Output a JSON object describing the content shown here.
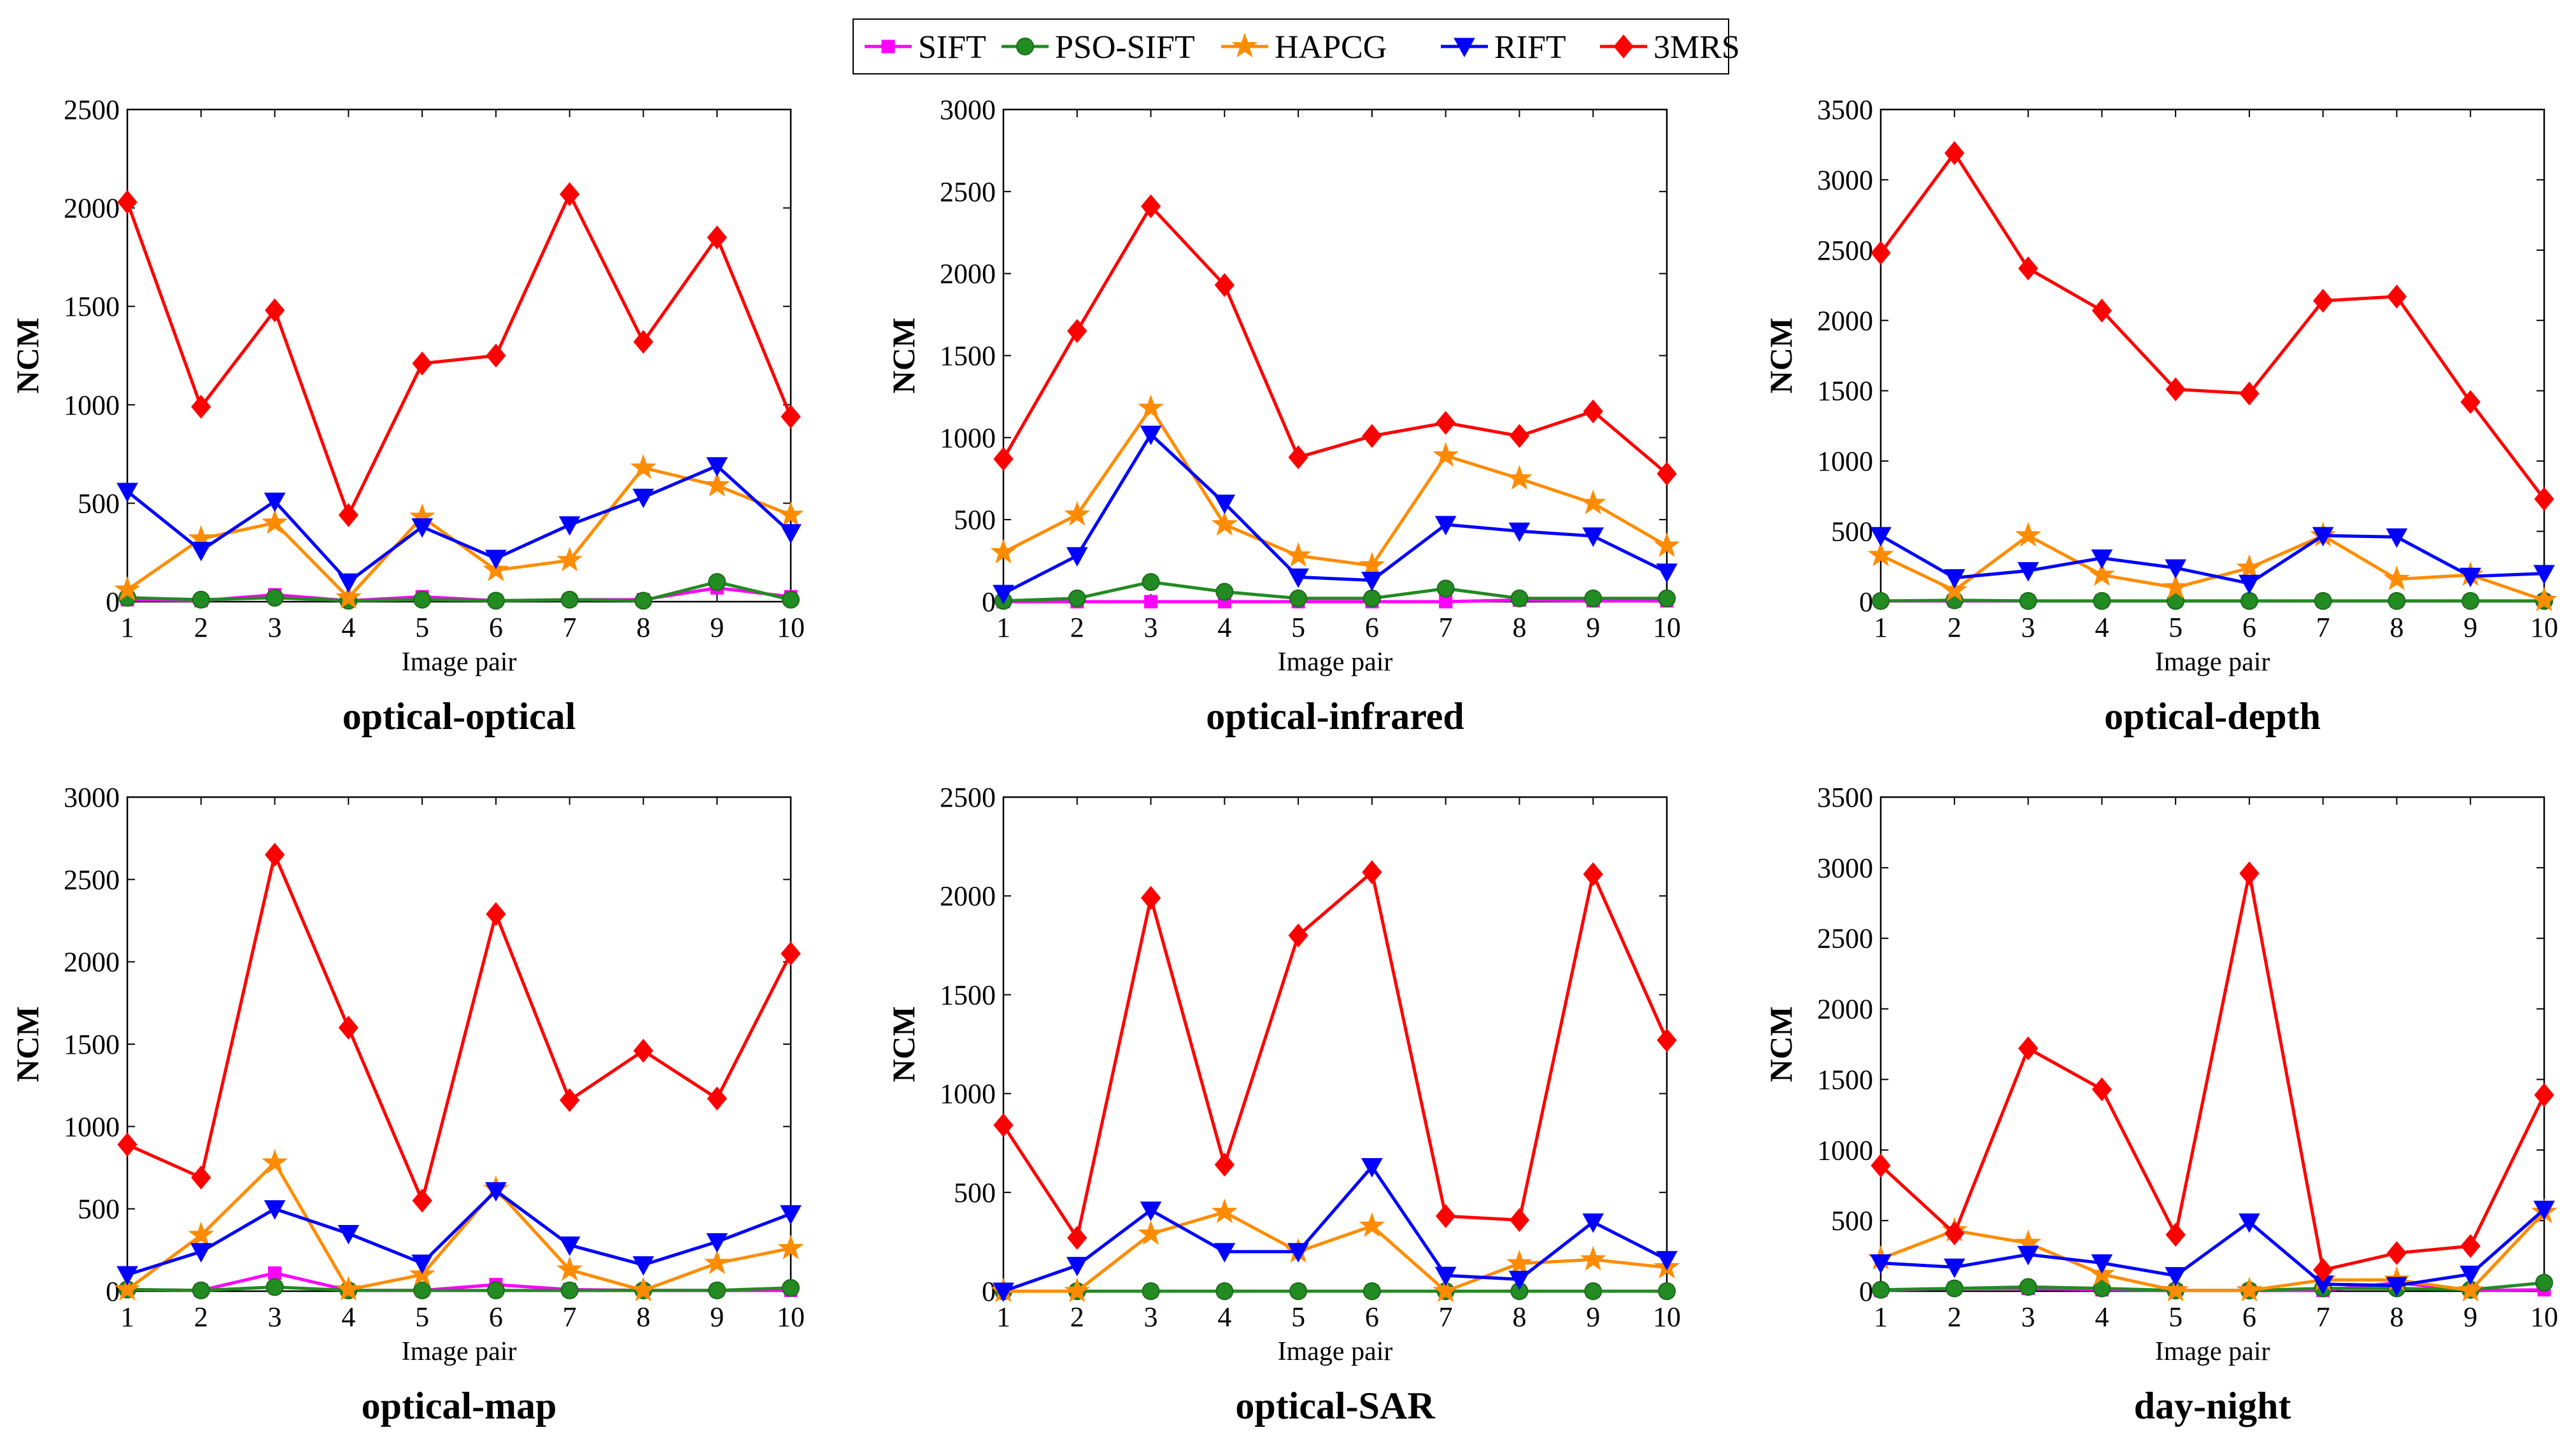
{
  "legend": [
    {
      "name": "SIFT",
      "color": "#ff00ff",
      "marker": "square"
    },
    {
      "name": "PSO-SIFT",
      "color": "#228b22",
      "marker": "circle"
    },
    {
      "name": "HAPCG",
      "color": "#ff8c00",
      "marker": "star"
    },
    {
      "name": "RIFT",
      "color": "#0000ff",
      "marker": "triangle-down"
    },
    {
      "name": "3MRS",
      "color": "#ff0000",
      "marker": "diamond"
    }
  ],
  "chart_data": [
    {
      "type": "line",
      "title": "optical-optical",
      "xlabel": "Image pair",
      "ylabel": "NCM",
      "x": [
        1,
        2,
        3,
        4,
        5,
        6,
        7,
        8,
        9,
        10
      ],
      "ylim": [
        0,
        2500
      ],
      "yticks": [
        0,
        500,
        1000,
        1500,
        2000,
        2500
      ],
      "series": [
        {
          "name": "SIFT",
          "values": [
            10,
            5,
            35,
            5,
            25,
            5,
            10,
            10,
            70,
            25
          ]
        },
        {
          "name": "PSO-SIFT",
          "values": [
            20,
            10,
            20,
            5,
            10,
            5,
            10,
            5,
            100,
            10
          ]
        },
        {
          "name": "HAPCG",
          "values": [
            60,
            320,
            400,
            20,
            430,
            160,
            210,
            680,
            590,
            440
          ]
        },
        {
          "name": "RIFT",
          "values": [
            560,
            260,
            510,
            100,
            380,
            220,
            390,
            530,
            690,
            350
          ]
        },
        {
          "name": "3MRS",
          "values": [
            2030,
            990,
            1480,
            440,
            1210,
            1250,
            2070,
            1320,
            1850,
            940
          ]
        }
      ]
    },
    {
      "type": "line",
      "title": "optical-infrared",
      "xlabel": "Image pair",
      "ylabel": "NCM",
      "x": [
        1,
        2,
        3,
        4,
        5,
        6,
        7,
        8,
        9,
        10
      ],
      "ylim": [
        0,
        3000
      ],
      "yticks": [
        0,
        500,
        1000,
        1500,
        2000,
        2500,
        3000
      ],
      "series": [
        {
          "name": "SIFT",
          "values": [
            0,
            0,
            0,
            0,
            0,
            0,
            0,
            10,
            5,
            5
          ]
        },
        {
          "name": "PSO-SIFT",
          "values": [
            5,
            20,
            120,
            60,
            20,
            20,
            80,
            20,
            20,
            20
          ]
        },
        {
          "name": "HAPCG",
          "values": [
            300,
            530,
            1180,
            470,
            280,
            220,
            890,
            750,
            600,
            340
          ]
        },
        {
          "name": "RIFT",
          "values": [
            50,
            280,
            1020,
            600,
            150,
            130,
            470,
            430,
            400,
            180
          ]
        },
        {
          "name": "3MRS",
          "values": [
            870,
            1650,
            2410,
            1930,
            880,
            1010,
            1090,
            1010,
            1160,
            780
          ]
        }
      ]
    },
    {
      "type": "line",
      "title": "optical-depth",
      "xlabel": "Image pair",
      "ylabel": "NCM",
      "x": [
        1,
        2,
        3,
        4,
        5,
        6,
        7,
        8,
        9,
        10
      ],
      "ylim": [
        0,
        3500
      ],
      "yticks": [
        0,
        500,
        1000,
        1500,
        2000,
        2500,
        3000,
        3500
      ],
      "series": [
        {
          "name": "SIFT",
          "values": [
            5,
            5,
            5,
            5,
            5,
            5,
            5,
            5,
            5,
            5
          ]
        },
        {
          "name": "PSO-SIFT",
          "values": [
            5,
            10,
            5,
            5,
            5,
            5,
            5,
            5,
            5,
            5
          ]
        },
        {
          "name": "HAPCG",
          "values": [
            330,
            80,
            470,
            190,
            100,
            240,
            470,
            160,
            190,
            10
          ]
        },
        {
          "name": "RIFT",
          "values": [
            470,
            170,
            220,
            310,
            240,
            130,
            470,
            460,
            180,
            200
          ]
        },
        {
          "name": "3MRS",
          "values": [
            2480,
            3190,
            2370,
            2070,
            1510,
            1480,
            2140,
            2170,
            1420,
            730
          ]
        }
      ]
    },
    {
      "type": "line",
      "title": "optical-map",
      "xlabel": "Image pair",
      "ylabel": "NCM",
      "x": [
        1,
        2,
        3,
        4,
        5,
        6,
        7,
        8,
        9,
        10
      ],
      "ylim": [
        0,
        3000
      ],
      "yticks": [
        0,
        500,
        1000,
        1500,
        2000,
        2500,
        3000
      ],
      "series": [
        {
          "name": "SIFT",
          "values": [
            10,
            5,
            110,
            5,
            5,
            40,
            10,
            5,
            5,
            5
          ]
        },
        {
          "name": "PSO-SIFT",
          "values": [
            10,
            5,
            25,
            5,
            5,
            5,
            5,
            5,
            5,
            20
          ]
        },
        {
          "name": "HAPCG",
          "values": [
            10,
            340,
            780,
            10,
            100,
            620,
            130,
            5,
            170,
            260
          ]
        },
        {
          "name": "RIFT",
          "values": [
            100,
            240,
            500,
            350,
            170,
            610,
            280,
            160,
            300,
            470
          ]
        },
        {
          "name": "3MRS",
          "values": [
            890,
            690,
            2650,
            1600,
            550,
            2290,
            1160,
            1460,
            1170,
            2050
          ]
        }
      ]
    },
    {
      "type": "line",
      "title": "optical-SAR",
      "xlabel": "Image pair",
      "ylabel": "NCM",
      "x": [
        1,
        2,
        3,
        4,
        5,
        6,
        7,
        8,
        9,
        10
      ],
      "ylim": [
        0,
        2500
      ],
      "yticks": [
        0,
        500,
        1000,
        1500,
        2000,
        2500
      ],
      "series": [
        {
          "name": "SIFT",
          "values": [
            0,
            0,
            0,
            0,
            0,
            0,
            0,
            0,
            0,
            0
          ]
        },
        {
          "name": "PSO-SIFT",
          "values": [
            0,
            0,
            0,
            0,
            0,
            0,
            0,
            0,
            0,
            0
          ]
        },
        {
          "name": "HAPCG",
          "values": [
            0,
            0,
            290,
            400,
            200,
            330,
            0,
            140,
            160,
            120
          ]
        },
        {
          "name": "RIFT",
          "values": [
            0,
            130,
            410,
            200,
            200,
            630,
            80,
            60,
            350,
            160
          ]
        },
        {
          "name": "3MRS",
          "values": [
            840,
            270,
            1990,
            640,
            1800,
            2120,
            380,
            360,
            2110,
            1270
          ]
        }
      ]
    },
    {
      "type": "line",
      "title": "day-night",
      "xlabel": "Image pair",
      "ylabel": "NCM",
      "x": [
        1,
        2,
        3,
        4,
        5,
        6,
        7,
        8,
        9,
        10
      ],
      "ylim": [
        0,
        3500
      ],
      "yticks": [
        0,
        500,
        1000,
        1500,
        2000,
        2500,
        3000,
        3500
      ],
      "series": [
        {
          "name": "SIFT",
          "values": [
            5,
            20,
            20,
            10,
            5,
            5,
            5,
            60,
            5,
            10
          ]
        },
        {
          "name": "PSO-SIFT",
          "values": [
            10,
            20,
            30,
            20,
            5,
            5,
            20,
            20,
            10,
            60
          ]
        },
        {
          "name": "HAPCG",
          "values": [
            230,
            430,
            340,
            120,
            5,
            5,
            80,
            80,
            5,
            560
          ]
        },
        {
          "name": "RIFT",
          "values": [
            200,
            170,
            260,
            200,
            110,
            490,
            50,
            40,
            120,
            580
          ]
        },
        {
          "name": "3MRS",
          "values": [
            890,
            410,
            1720,
            1430,
            400,
            2960,
            150,
            270,
            320,
            1390
          ]
        }
      ]
    }
  ]
}
